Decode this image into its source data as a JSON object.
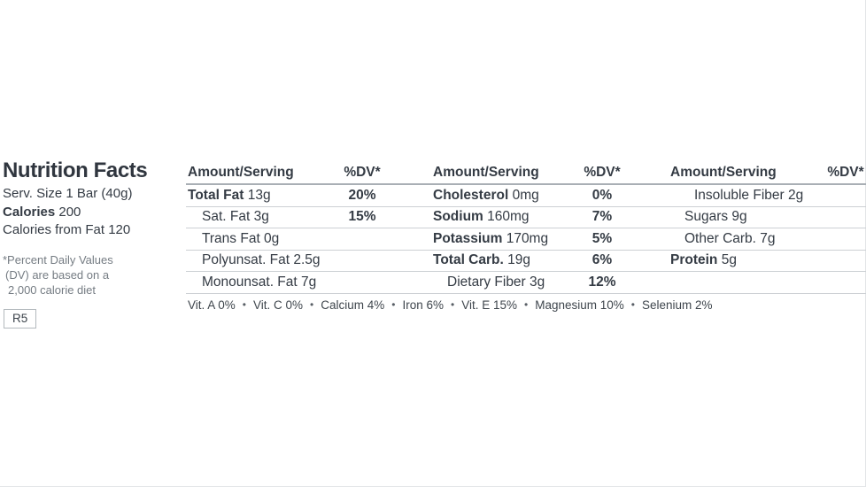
{
  "colors": {
    "ink": "#343b44",
    "muted": "#757c83",
    "rule": "#ccd0d4",
    "rule_heavy": "#a9afb5"
  },
  "left_panel": {
    "title": "Nutrition Facts",
    "serving": "Serv. Size 1 Bar (40g)",
    "calories_label": "Calories",
    "calories_value": "200",
    "calories_from_fat": "Calories from Fat 120",
    "footnote_lines": [
      "*Percent Daily Values",
      "(DV) are based on a",
      "2,000 calorie diet"
    ],
    "revision": "R5"
  },
  "table": {
    "header": {
      "amount": "Amount/Serving",
      "dv": "%DV*"
    },
    "rows": [
      {
        "cells": [
          {
            "bold": "Total Fat",
            "rest": "13g",
            "indent": 0,
            "dv": "20%"
          },
          {
            "bold": "Cholesterol",
            "rest": "0mg",
            "indent": 0,
            "dv": "0%"
          },
          {
            "bold": "",
            "rest": "Insoluble Fiber 2g",
            "indent": 2,
            "dv": ""
          }
        ]
      },
      {
        "cells": [
          {
            "bold": "",
            "rest": "Sat. Fat 3g",
            "indent": 1,
            "dv": "15%"
          },
          {
            "bold": "Sodium",
            "rest": "160mg",
            "indent": 0,
            "dv": "7%"
          },
          {
            "bold": "",
            "rest": "Sugars 9g",
            "indent": 1,
            "dv": ""
          }
        ]
      },
      {
        "cells": [
          {
            "bold": "",
            "rest": "Trans Fat 0g",
            "indent": 1,
            "dv": ""
          },
          {
            "bold": "Potassium",
            "rest": "170mg",
            "indent": 0,
            "dv": "5%"
          },
          {
            "bold": "",
            "rest": "Other Carb. 7g",
            "indent": 1,
            "dv": ""
          }
        ]
      },
      {
        "cells": [
          {
            "bold": "",
            "rest": "Polyunsat. Fat 2.5g",
            "indent": 1,
            "dv": ""
          },
          {
            "bold": "Total Carb.",
            "rest": "19g",
            "indent": 0,
            "dv": "6%"
          },
          {
            "bold": "Protein",
            "rest": "5g",
            "indent": 0,
            "dv": ""
          }
        ]
      },
      {
        "cells": [
          {
            "bold": "",
            "rest": "Monounsat. Fat 7g",
            "indent": 1,
            "dv": ""
          },
          {
            "bold": "",
            "rest": "Dietary Fiber 3g",
            "indent": 1,
            "dv": "12%"
          },
          {
            "bold": "",
            "rest": "",
            "indent": 0,
            "dv": ""
          }
        ]
      }
    ]
  },
  "micronutrients": {
    "separator": "•",
    "items": [
      "Vit. A 0%",
      "Vit. C 0%",
      "Calcium 4%",
      "Iron 6%",
      "Vit. E 15%",
      "Magnesium 10%",
      "Selenium 2%"
    ]
  }
}
